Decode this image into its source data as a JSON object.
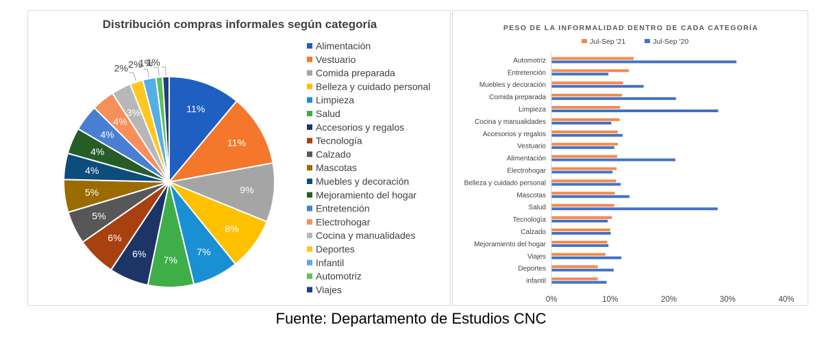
{
  "footer": "Fuente: Departamento de Estudios CNC",
  "chart_data": [
    {
      "type": "pie",
      "title": "Distribución compras informales según categoría",
      "legend_position": "right",
      "slices": [
        {
          "label": "Alimentación",
          "value": 11,
          "display": "11%",
          "color": "#1f5fc1"
        },
        {
          "label": "Vestuario",
          "value": 11,
          "display": "11%",
          "color": "#f4772c"
        },
        {
          "label": "Comida preparada",
          "value": 9,
          "display": "9%",
          "color": "#a5a5a5"
        },
        {
          "label": "Belleza y cuidado personal",
          "value": 8,
          "display": "8%",
          "color": "#ffc000"
        },
        {
          "label": "Limpieza",
          "value": 7,
          "display": "7%",
          "color": "#1a8fd3"
        },
        {
          "label": "Salud",
          "value": 7,
          "display": "7%",
          "color": "#3fae49"
        },
        {
          "label": "Accesorios y regalos",
          "value": 6,
          "display": "6%",
          "color": "#1d3466"
        },
        {
          "label": "Tecnología",
          "value": 6,
          "display": "6%",
          "color": "#a8410f"
        },
        {
          "label": "Calzado",
          "value": 5,
          "display": "5%",
          "color": "#575757"
        },
        {
          "label": "Mascotas",
          "value": 5,
          "display": "5%",
          "color": "#9b6b00"
        },
        {
          "label": "Muebles y decoración",
          "value": 4,
          "display": "4%",
          "color": "#0c4d7e"
        },
        {
          "label": "Mejoramiento del hogar",
          "value": 4,
          "display": "4%",
          "color": "#265d27"
        },
        {
          "label": "Entretención",
          "value": 4,
          "display": "4%",
          "color": "#4a7ed3"
        },
        {
          "label": "Electrohogar",
          "value": 3.5,
          "display": "4%",
          "color": "#f78f5a"
        },
        {
          "label": "Cocina y manualidades",
          "value": 3,
          "display": "3%",
          "color": "#b7b7b7"
        },
        {
          "label": "Deportes",
          "value": 2,
          "display": "2%",
          "color": "#ffc71f"
        },
        {
          "label": "Infantil",
          "value": 2,
          "display": "2%",
          "color": "#55aee6"
        },
        {
          "label": "Automotriz",
          "value": 1,
          "display": "1%",
          "color": "#5fbf5a"
        },
        {
          "label": "Viajes",
          "value": 1,
          "display": "1%",
          "color": "#1f3e7c"
        }
      ]
    },
    {
      "type": "bar",
      "orientation": "horizontal",
      "title": "PESO DE LA INFORMALIDAD DENTRO DE CADA CATEGORÍA",
      "legend_position": "top",
      "xlim": [
        0,
        40
      ],
      "x_ticks": [
        "0%",
        "10%",
        "20%",
        "30%",
        "40%"
      ],
      "categories": [
        "Automotriz",
        "Entretención",
        "Muebles y decoración",
        "Comida preparada",
        "Limpieza",
        "Cocina y manualidades",
        "Accesorios y regalos",
        "Vestuario",
        "Alimentación",
        "Electrohogar",
        "Belleza y cuidado personal",
        "Mascotas",
        "Salud",
        "Tecnología",
        "Calzado",
        "Mejoramiento del hogar",
        "Viajes",
        "Deportes",
        "infantil"
      ],
      "series": [
        {
          "name": "Jul-Sep '21",
          "color": "#f4894c",
          "values": [
            14,
            13.2,
            12.2,
            12,
            11.7,
            11.6,
            11.3,
            11.3,
            11.2,
            11.1,
            11,
            10.8,
            10.7,
            10.3,
            10,
            9.5,
            9.2,
            7.9,
            7.9
          ]
        },
        {
          "name": "Jul-Sep '20",
          "color": "#4472c4",
          "values": [
            31.5,
            9.7,
            15.7,
            21.2,
            28.4,
            10.2,
            12.1,
            10.7,
            21.1,
            10.4,
            11.8,
            13.3,
            28.3,
            9.6,
            10.1,
            9.7,
            11.9,
            10.6,
            9.4
          ]
        }
      ]
    }
  ]
}
